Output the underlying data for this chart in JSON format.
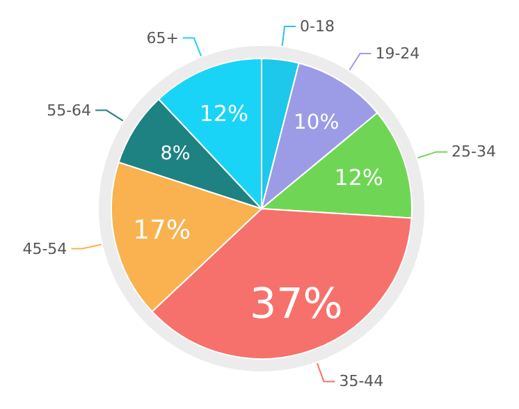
{
  "chart_data": {
    "type": "pie",
    "categories": [
      "0-18",
      "19-24",
      "25-34",
      "35-44",
      "45-54",
      "55-64",
      "65+"
    ],
    "values": [
      4,
      10,
      12,
      37,
      17,
      8,
      12
    ],
    "colors": [
      "#1ec8ea",
      "#9c9ce6",
      "#6fd655",
      "#f7716c",
      "#f9b24f",
      "#1e8282",
      "#1ad4f7"
    ],
    "value_labels": [
      null,
      "10%",
      "12%",
      "37%",
      "17%",
      "8%",
      "12%"
    ]
  }
}
